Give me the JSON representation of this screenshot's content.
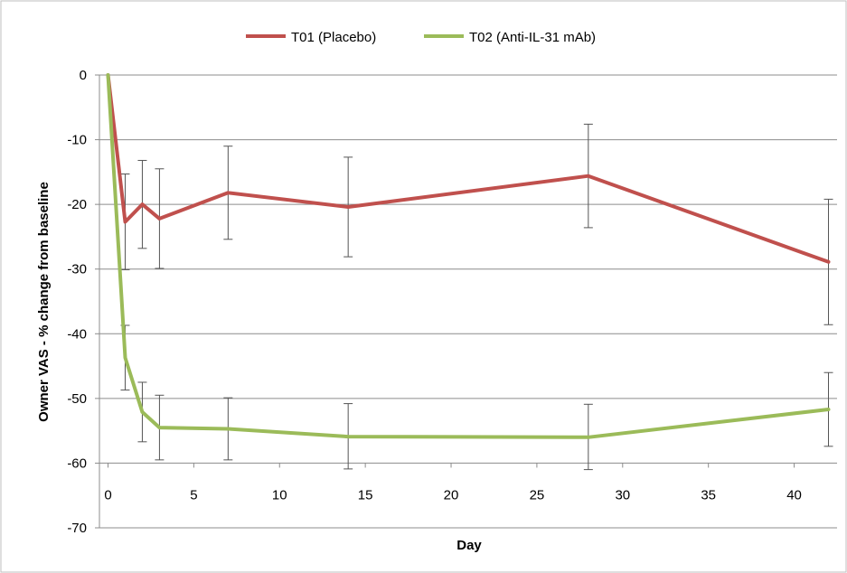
{
  "chart_data": {
    "type": "line",
    "title": "",
    "xlabel": "Day",
    "ylabel": "Owner VAS - % change from baseline",
    "xlim": [
      -0.5,
      42.5
    ],
    "ylim": [
      -70,
      0
    ],
    "x_ticks": [
      0,
      5,
      10,
      15,
      20,
      25,
      30,
      35,
      40
    ],
    "y_ticks": [
      0,
      -10,
      -20,
      -30,
      -40,
      -50,
      -60,
      -70
    ],
    "x_axis_at_y": -60,
    "grid": "horizontal",
    "legend_position": "top",
    "series": [
      {
        "name": "T01 (Placebo)",
        "color": "#c0504d",
        "points": [
          {
            "x": 0,
            "y": 0
          },
          {
            "x": 1,
            "y": -22.7,
            "err_low": -30.1,
            "err_high": -15.3
          },
          {
            "x": 2,
            "y": -20.0,
            "err_low": -26.8,
            "err_high": -13.2
          },
          {
            "x": 3,
            "y": -22.2,
            "err_low": -29.9,
            "err_high": -14.5
          },
          {
            "x": 7,
            "y": -18.2,
            "err_low": -25.4,
            "err_high": -11.0
          },
          {
            "x": 14,
            "y": -20.4,
            "err_low": -28.1,
            "err_high": -12.7
          },
          {
            "x": 28,
            "y": -15.6,
            "err_low": -23.6,
            "err_high": -7.6
          },
          {
            "x": 42,
            "y": -28.9,
            "err_low": -38.6,
            "err_high": -19.2
          }
        ]
      },
      {
        "name": "T02 (Anti-IL-31 mAb)",
        "color": "#9bbb59",
        "points": [
          {
            "x": 0,
            "y": 0
          },
          {
            "x": 1,
            "y": -43.7,
            "err_low": -48.7,
            "err_high": -38.7
          },
          {
            "x": 2,
            "y": -52.1,
            "err_low": -56.7,
            "err_high": -47.5
          },
          {
            "x": 3,
            "y": -54.5,
            "err_low": -59.5,
            "err_high": -49.5
          },
          {
            "x": 7,
            "y": -54.7,
            "err_low": -59.5,
            "err_high": -49.9
          },
          {
            "x": 14,
            "y": -55.9,
            "err_low": -60.9,
            "err_high": -50.8
          },
          {
            "x": 28,
            "y": -56.0,
            "err_low": -61.0,
            "err_high": -50.9
          },
          {
            "x": 42,
            "y": -51.7,
            "err_low": -57.4,
            "err_high": -46.0
          }
        ]
      }
    ]
  }
}
